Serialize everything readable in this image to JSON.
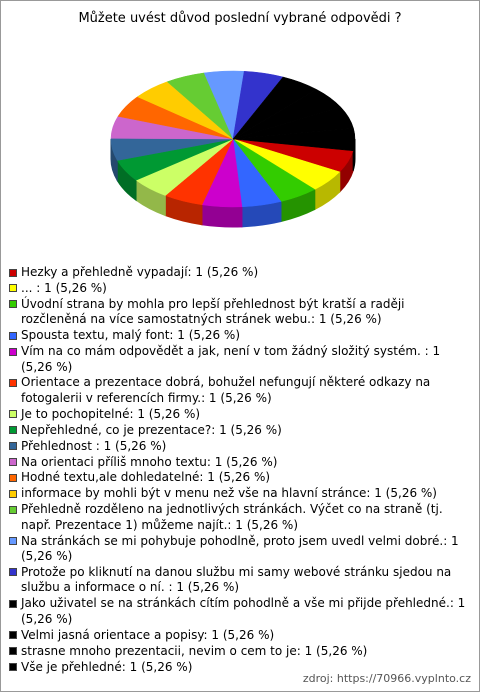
{
  "chart_data": {
    "type": "pie3d",
    "title": "Můžete uvést důvod poslední vybrané odpovědi ?",
    "categories": [
      "Hezky a přehledně vypadají: 1 (5,26 %)",
      "... : 1 (5,26 %)",
      "Úvodní strana by mohla pro lepší přehlednost být kratší a raději rozčleněná na více samostatných stránek webu.: 1 (5,26 %)",
      "Spousta textu, malý font: 1 (5,26 %)",
      "Vím na co mám odpovědět a jak, není v tom žádný složitý systém. : 1 (5,26 %)",
      "Orientace a prezentace dobrá, bohužel nefungují některé odkazy na fotogalerii v referencích firmy.: 1 (5,26 %)",
      "Je to pochopitelné: 1 (5,26 %)",
      "Nepřehledné, co je prezentace?: 1 (5,26 %)",
      "Přehlednost : 1 (5,26 %)",
      "Na orientaci příliš mnoho textu: 1 (5,26 %)",
      "Hodné textu,ale dohledatelné: 1 (5,26 %)",
      "informace by mohli být v menu než vše na hlavní stránce: 1 (5,26 %)",
      "Přehledně rozděleno na jednotlivých stránkách. Výčet co na straně (tj. např. Prezentace 1) můžeme najít.: 1 (5,26 %)",
      "Na stránkách se mi pohybuje pohodlně, proto jsem uvedl velmi dobré.: 1 (5,26 %)",
      "Protože po kliknutí na danou službu mi samy webové stránku sjedou na službu a informace o ní. : 1 (5,26 %)",
      "Jako uživatel se na stránkách cítím pohodlně a vše mi přijde přehledné.: 1 (5,26 %)",
      "Velmi jasná orientace a popisy: 1 (5,26 %)",
      "strasne mnoho prezentacii, nevim o cem to je: 1 (5,26 %)",
      "Vše je přehledné: 1 (5,26 %)"
    ],
    "values": [
      1,
      1,
      1,
      1,
      1,
      1,
      1,
      1,
      1,
      1,
      1,
      1,
      1,
      1,
      1,
      1,
      1,
      1,
      1
    ],
    "colors": [
      "#cc0000",
      "#ffff00",
      "#33cc00",
      "#3366ff",
      "#cc00cc",
      "#ff3300",
      "#ccff66",
      "#009933",
      "#336699",
      "#cc66cc",
      "#ff6600",
      "#ffcc00",
      "#66cc33",
      "#6699ff",
      "#3333cc",
      "#000000",
      "#000000",
      "#000000",
      "#000000"
    ],
    "source": "zdroj: https://70966.vyplnto.cz"
  }
}
